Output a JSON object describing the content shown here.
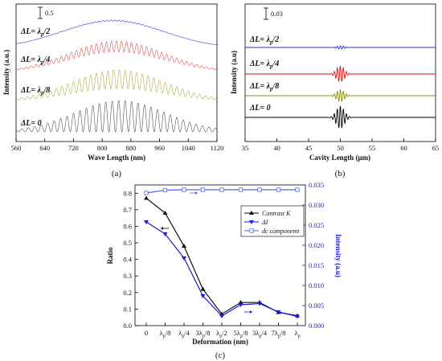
{
  "chart_data": [
    {
      "type": "line",
      "panel": "(a)",
      "xlabel": "Wave Length (nm)",
      "ylabel": "Intensity (a.u.)",
      "xlim": [
        560,
        1120
      ],
      "x_ticks": [
        "560",
        "640",
        "720",
        "800",
        "880",
        "960",
        "1040",
        "1120"
      ],
      "scale_bar": "0.5",
      "series": [
        {
          "name": "ΔL= λp/2",
          "label_parts": [
            "ΔL= λ",
            "p",
            "/2"
          ],
          "color": "#3b3bd8",
          "offset": 3.0,
          "envelope": 0.35,
          "modulation": 0.04,
          "center_nm": 830,
          "width_nm": 200,
          "fringe_nm": 11
        },
        {
          "name": "ΔL= λp/4",
          "label_parts": [
            "ΔL= λ",
            "p",
            "/4"
          ],
          "color": "#e05050",
          "offset": 2.0,
          "envelope": 0.5,
          "modulation": 0.35,
          "center_nm": 840,
          "width_nm": 190,
          "fringe_nm": 14
        },
        {
          "name": "ΔL= λp/8",
          "label_parts": [
            "ΔL= λ",
            "p",
            "/8"
          ],
          "color": "#b0ad40",
          "offset": 1.0,
          "envelope": 0.5,
          "modulation": 0.6,
          "center_nm": 845,
          "width_nm": 185,
          "fringe_nm": 16
        },
        {
          "name": "ΔL= 0",
          "label_parts": [
            "ΔL= 0",
            "",
            ""
          ],
          "color": "#555555",
          "offset": 0.0,
          "envelope": 0.5,
          "modulation": 1.0,
          "center_nm": 850,
          "width_nm": 180,
          "fringe_nm": 18
        }
      ]
    },
    {
      "type": "line",
      "panel": "(b)",
      "xlabel": "Cavity Length (μm)",
      "ylabel": "Intensity (a.u)",
      "xlim": [
        35,
        65
      ],
      "x_ticks": [
        "35",
        "40",
        "45",
        "50",
        "55",
        "60",
        "65"
      ],
      "scale_bar": "0.03",
      "series": [
        {
          "name": "ΔL= λp/2",
          "label_parts": [
            "ΔL= λ",
            "p",
            "/2"
          ],
          "color": "#2b2bd0",
          "offset": 3.0,
          "amplitude": 0.05,
          "center": 50
        },
        {
          "name": "ΔL= λp/4",
          "label_parts": [
            "ΔL= λ",
            "p",
            "/4"
          ],
          "color": "#e01010",
          "offset": 2.0,
          "amplitude": 0.25,
          "center": 50
        },
        {
          "name": "ΔL= λp/8",
          "label_parts": [
            "ΔL= λ",
            "p",
            "/8"
          ],
          "color": "#8a8a10",
          "offset": 1.0,
          "amplitude": 0.18,
          "center": 50
        },
        {
          "name": "ΔL= 0",
          "label_parts": [
            "ΔL= 0",
            "",
            ""
          ],
          "color": "#000000",
          "offset": 0.0,
          "amplitude": 0.35,
          "center": 50
        }
      ]
    },
    {
      "type": "line",
      "panel": "(c)",
      "xlabel": "Deformation (nm)",
      "ylabel": "Ratio",
      "y2label": "Intensity (a.u)",
      "categories": [
        "0",
        "λp/8",
        "λp/4",
        "3λp/8",
        "λp/2",
        "5λp/8",
        "3λp/4",
        "7λp/8",
        "λp"
      ],
      "category_parts": [
        [
          "0",
          "",
          ""
        ],
        [
          "λ",
          "p",
          "/8"
        ],
        [
          "λ",
          "p",
          "/4"
        ],
        [
          "3λ",
          "p",
          "/8"
        ],
        [
          "λ",
          "p",
          "/2"
        ],
        [
          "5λ",
          "p",
          "/8"
        ],
        [
          "3λ",
          "p",
          "/4"
        ],
        [
          "7λ",
          "p",
          "/8"
        ],
        [
          "λ",
          "p",
          ""
        ]
      ],
      "ylim": [
        0,
        0.85
      ],
      "y_ticks": [
        "0.0",
        "0.1",
        "0.2",
        "0.3",
        "0.4",
        "0.5",
        "0.6",
        "0.7",
        "0.8"
      ],
      "y2lim": [
        0,
        0.035
      ],
      "y2_ticks": [
        "0.000",
        "0.005",
        "0.010",
        "0.015",
        "0.020",
        "0.025",
        "0.030",
        "0.035"
      ],
      "legend_position": "top-right",
      "series": [
        {
          "name": "Contrast K",
          "axis": "left",
          "marker": "triangle-up",
          "color": "#111111",
          "values": [
            0.77,
            0.68,
            0.48,
            0.22,
            0.07,
            0.14,
            0.14,
            0.08,
            0.06
          ]
        },
        {
          "name": "ΔI",
          "axis": "right",
          "marker": "triangle-down",
          "color": "#1a1ae0",
          "values": [
            0.0258,
            0.0228,
            0.0168,
            0.0074,
            0.0024,
            0.0052,
            0.0055,
            0.0034,
            0.0023
          ]
        },
        {
          "name": "dc componemt",
          "axis": "right",
          "marker": "square-open",
          "color": "#4a6ae8",
          "values": [
            0.033,
            0.0337,
            0.0338,
            0.0338,
            0.0338,
            0.0338,
            0.0338,
            0.0338,
            0.0338
          ]
        }
      ]
    }
  ]
}
